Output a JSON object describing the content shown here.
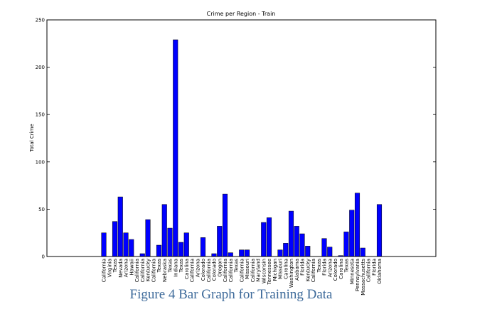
{
  "caption": "Figure 4 Bar Graph for Training Data",
  "colors": {
    "bar": "#0000ff",
    "axis": "#000000",
    "caption": "#3d6a9a"
  },
  "chart_data": {
    "type": "bar",
    "title": "Crime per Region - Train",
    "xlabel": "",
    "ylabel": "Total Crime",
    "ylim": [
      0,
      250
    ],
    "yticks": [
      0,
      50,
      100,
      150,
      200,
      250
    ],
    "grid": false,
    "legend": "none",
    "categories": [
      "California",
      "Virginia",
      "Texas",
      "Nevada",
      "Arizona",
      "Hawaii",
      "California",
      "California",
      "Kentucky",
      "California",
      "Texas",
      "Nebraska",
      "Texas",
      "Indiana",
      "Texas",
      "Carolina",
      "California",
      "Arizona",
      "Colorado",
      "California",
      "Colorado",
      "Oregon",
      "California",
      "California",
      "Texas",
      "California",
      "Missouri",
      "California",
      "Maryland",
      "Wisconsin",
      "Tennessee",
      "Michigan",
      "Missouri",
      "Carolina",
      "Washington",
      "Alabama",
      "Florida",
      "Kentucky",
      "California",
      "Texas",
      "Florida",
      "Arizona",
      "Colorado",
      "Carolina",
      "Texas",
      "Minnesota",
      "Pennsylvania",
      "Massachusetts",
      "California",
      "Florida",
      "Oklahoma"
    ],
    "values": [
      25,
      0,
      37,
      63,
      25,
      18,
      0,
      3,
      39,
      0,
      12,
      55,
      30,
      229,
      15,
      25,
      0,
      0,
      20,
      0,
      3,
      32,
      66,
      4,
      0,
      7,
      7,
      0,
      0,
      36,
      41,
      0,
      7,
      14,
      48,
      32,
      24,
      11,
      0,
      0,
      19,
      10,
      0,
      1,
      26,
      49,
      67,
      9,
      0,
      0,
      55
    ]
  }
}
